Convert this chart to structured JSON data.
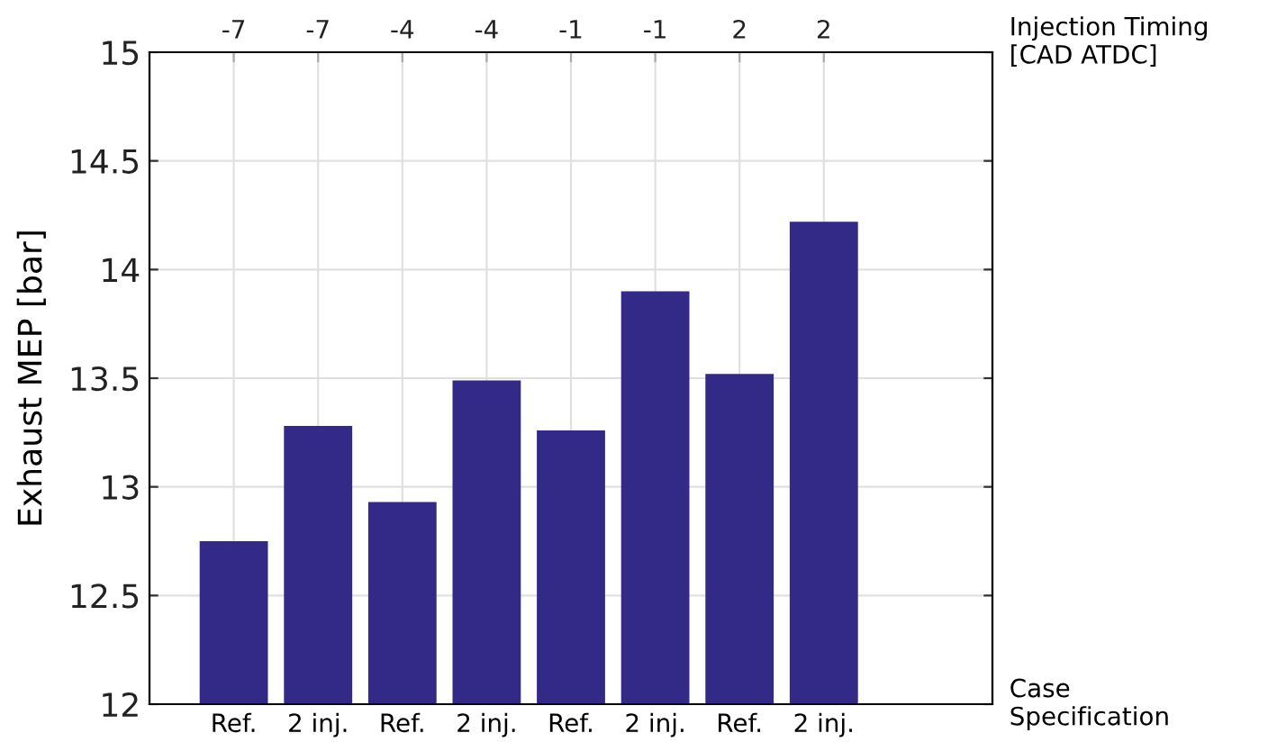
{
  "chart_data": {
    "type": "bar",
    "x2label": "Injection Timing [CAD ATDC]",
    "ylabel": "Exhaust MEP [bar]",
    "categories": [
      "Ref.",
      "2 inj.",
      "Ref.",
      "2 inj.",
      "Ref.",
      "2 inj.",
      "Ref.",
      "2 inj."
    ],
    "values": [
      12.75,
      13.28,
      12.93,
      13.49,
      13.26,
      13.9,
      13.52,
      14.22
    ],
    "color": "#332a87",
    "annotations": [
      "-7",
      "-7",
      "-4",
      "-4",
      "-1",
      "-1",
      "2",
      "2",
      "Case Specification"
    ],
    "ylim": [
      12,
      15
    ],
    "yticks": [
      12,
      12.5,
      13,
      13.5,
      14,
      14.5,
      15
    ],
    "grid": true
  }
}
